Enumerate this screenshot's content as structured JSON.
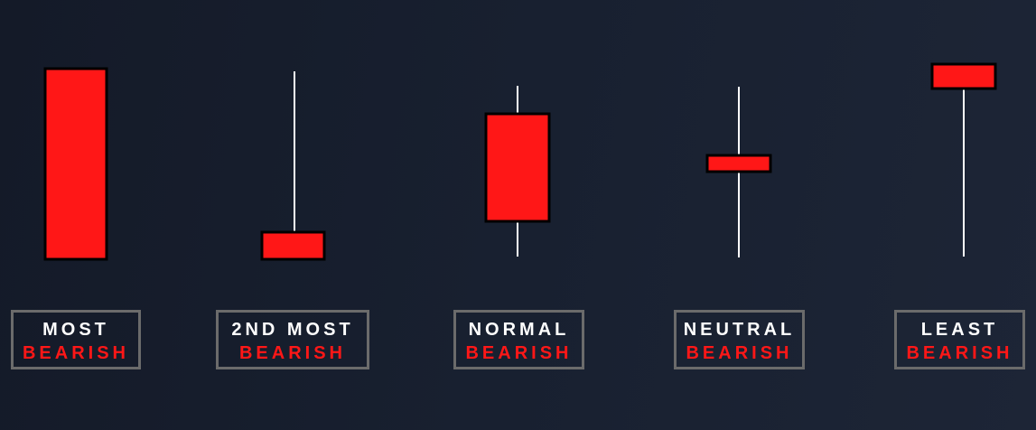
{
  "colors": {
    "body": "#ff1717",
    "outline": "#000000",
    "wick": "#ffffff",
    "label_white": "#ffffff",
    "label_red": "#ff1717",
    "label_border": "#6b6b6b"
  },
  "candles": [
    {
      "line1": "MOST",
      "line2": "BEARISH"
    },
    {
      "line1": "2ND MOST",
      "line2": "BEARISH"
    },
    {
      "line1": "NORMAL",
      "line2": "BEARISH"
    },
    {
      "line1": "NEUTRAL",
      "line2": "BEARISH"
    },
    {
      "line1": "LEAST",
      "line2": "BEARISH"
    }
  ]
}
